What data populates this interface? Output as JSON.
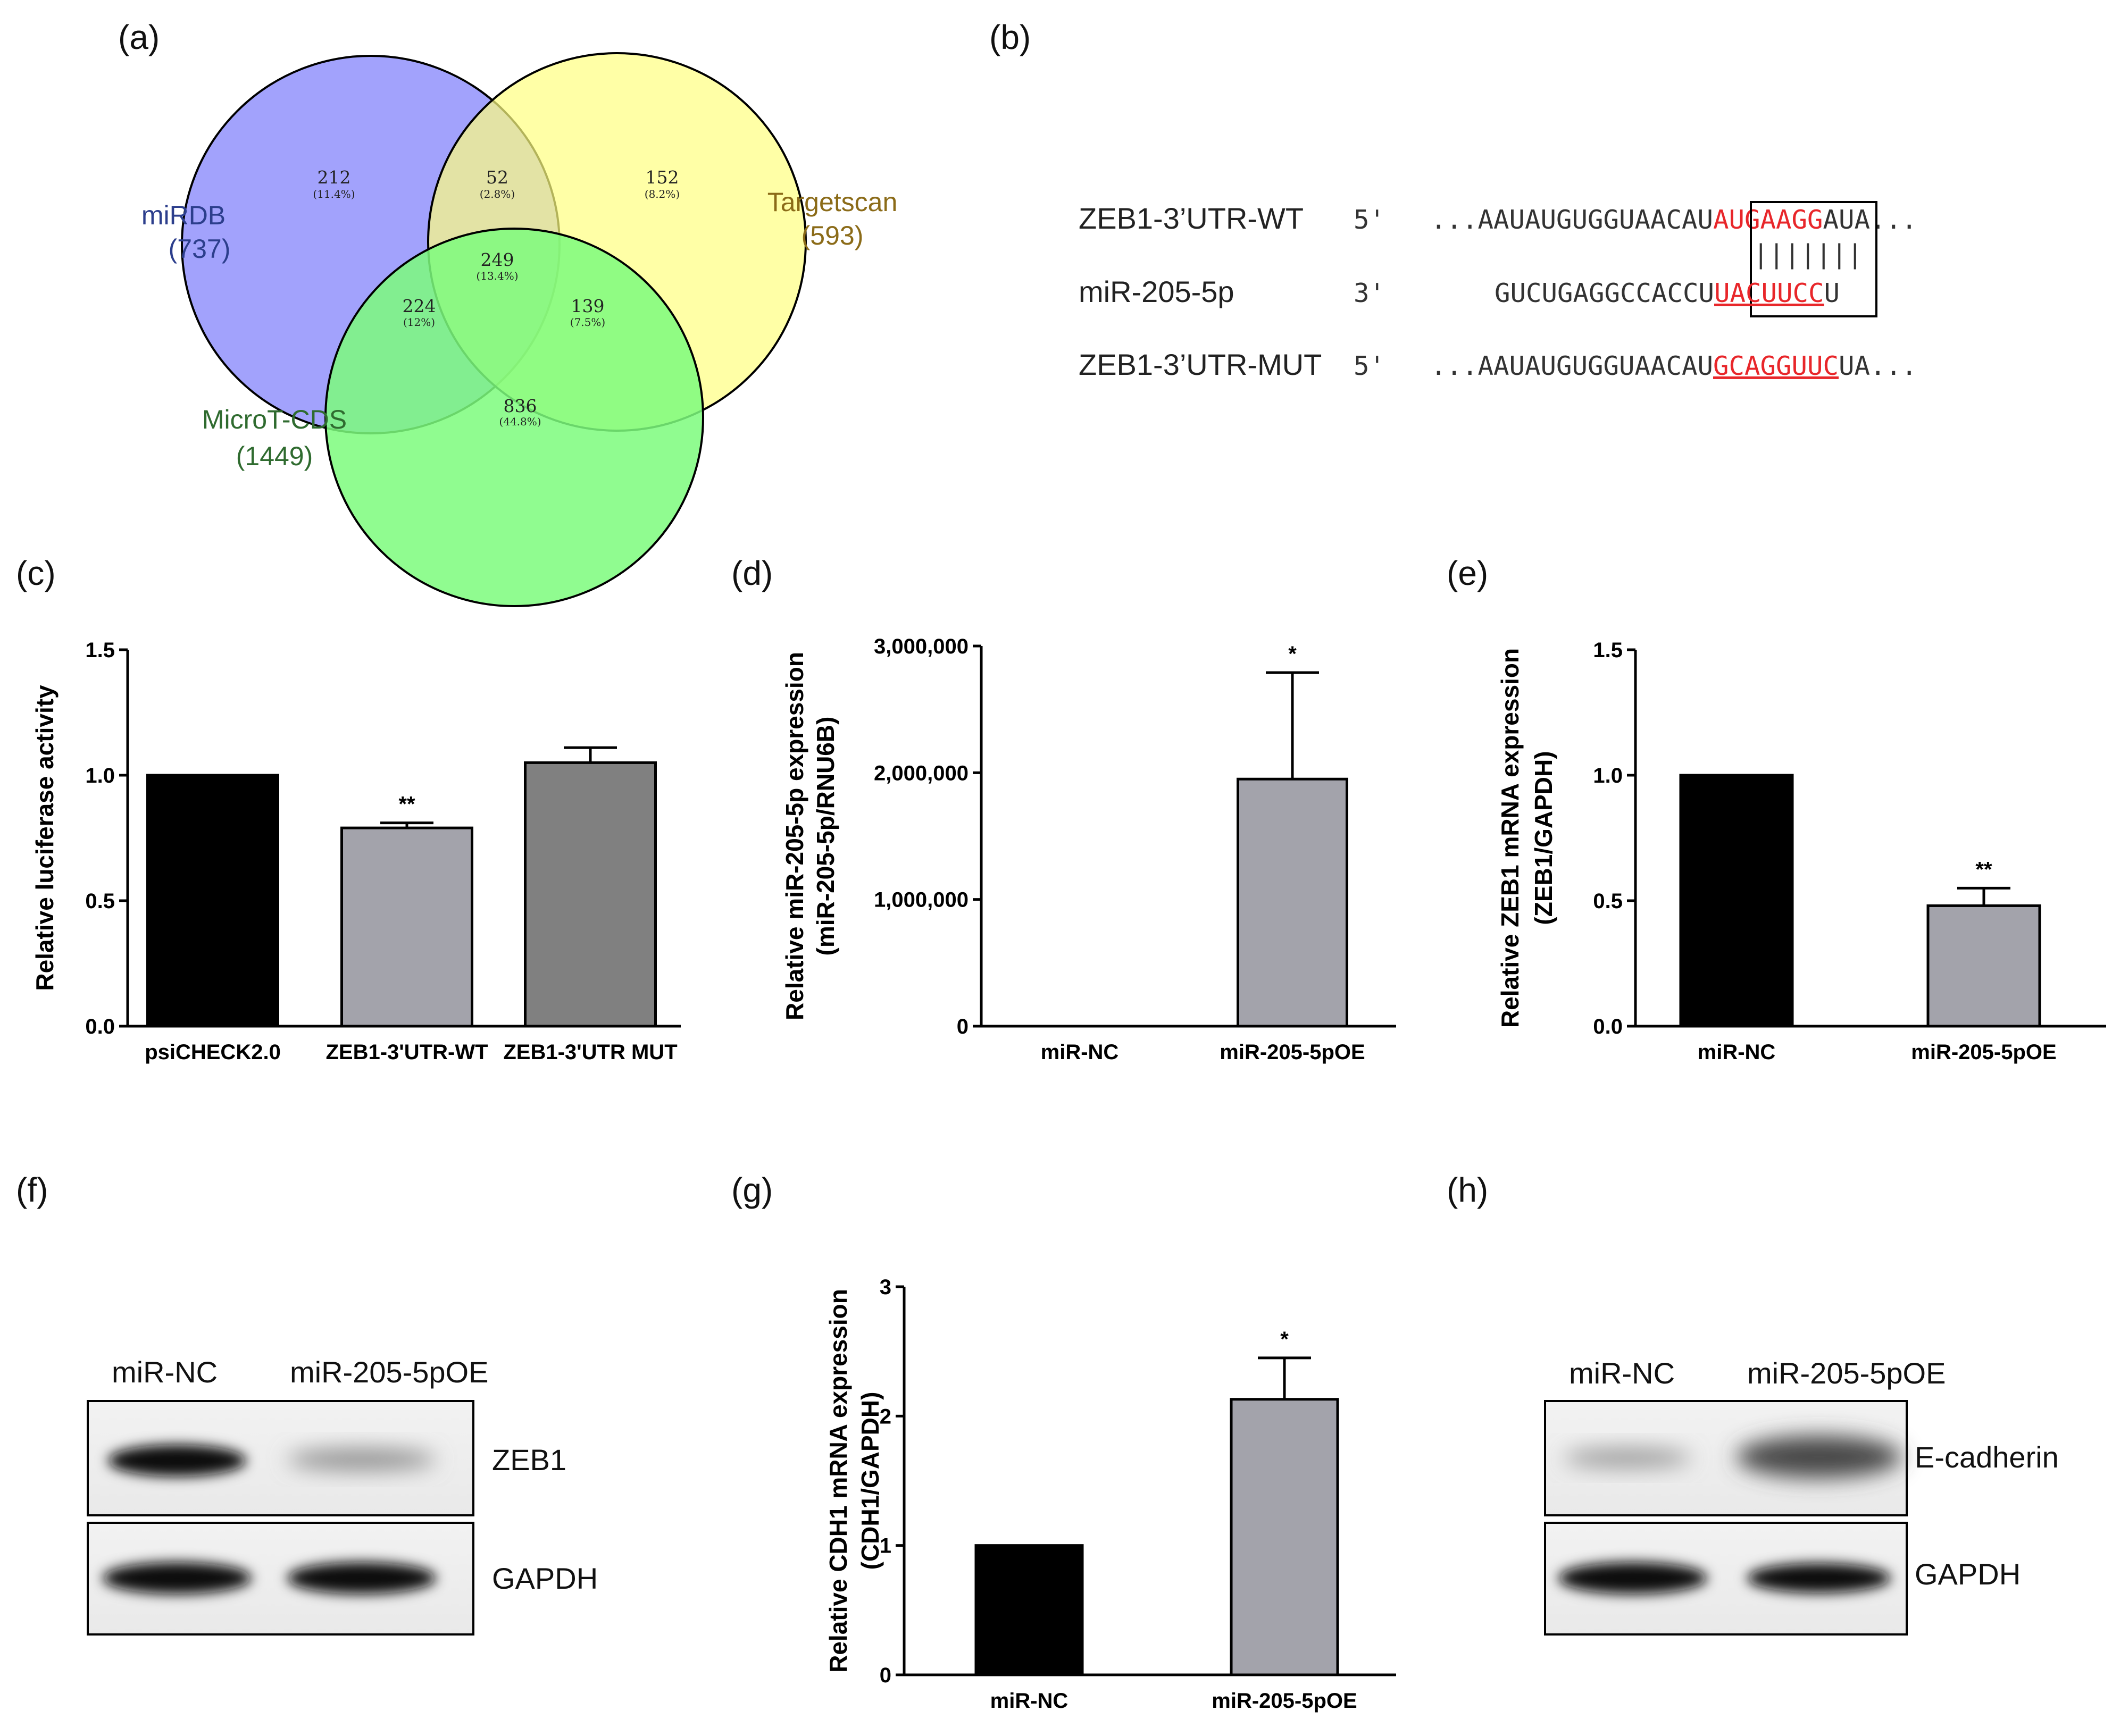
{
  "panels": {
    "a": "(a)",
    "b": "(b)",
    "c": "(c)",
    "d": "(d)",
    "e": "(e)",
    "f": "(f)",
    "g": "(g)",
    "h": "(h)"
  },
  "venn": {
    "sets": [
      {
        "name": "miRDB",
        "total": "(737)",
        "color": "#7b7bfb",
        "label_color": "#2c3e8c"
      },
      {
        "name": "Targetscan",
        "total": "(593)",
        "color": "#ffff80",
        "label_color": "#8b6b18"
      },
      {
        "name": "MicroT-CDS",
        "total": "(1449)",
        "color": "#7cfc7c",
        "label_color": "#2f6b2f"
      }
    ],
    "regions": {
      "mirdb_only": {
        "n": "212",
        "pct": "(11.4%)"
      },
      "mirdb_target": {
        "n": "52",
        "pct": "(2.8%)"
      },
      "target_only": {
        "n": "152",
        "pct": "(8.2%)"
      },
      "all_three": {
        "n": "249",
        "pct": "(13.4%)"
      },
      "mirdb_microt": {
        "n": "224",
        "pct": "(12%)"
      },
      "target_microt": {
        "n": "139",
        "pct": "(7.5%)"
      },
      "microt_only": {
        "n": "836",
        "pct": "(44.8%)"
      }
    }
  },
  "sequences": {
    "wt": {
      "name": "ZEB1-3’UTR-WT",
      "end": "5'",
      "pre": "...AAUAUGUGGUAACAU",
      "seed": "AUGAAGG",
      "post": "AUA..."
    },
    "pairing": "|||||||",
    "mir": {
      "name": "miR-205-5p",
      "end": "3'",
      "pre": "GUCUGAGGCCACCU",
      "seed": "UACUUCC",
      "post": "U"
    },
    "mut": {
      "name": "ZEB1-3’UTR-MUT",
      "end": "5'",
      "pre": "...AAUAUGUGGUAACAU",
      "seed": "GCAGGUUC",
      "post": "UA..."
    },
    "seed_color": "#e8262a"
  },
  "chart_data": [
    {
      "panel": "c",
      "type": "bar",
      "categories": [
        "psiCHECK2.0",
        "ZEB1-3'UTR-WT",
        "ZEB1-3'UTR MUT"
      ],
      "values": [
        1.0,
        0.79,
        1.05
      ],
      "errors": [
        0,
        0.02,
        0.06
      ],
      "significance": [
        "",
        "**",
        ""
      ],
      "colors": [
        "#000000",
        "#a3a3ab",
        "#808080"
      ],
      "ylabel": "Relative luciferase activity",
      "ylabel2": "",
      "ylim": [
        0,
        1.5
      ],
      "yticks": [
        "0.0",
        "0.5",
        "1.0",
        "1.5"
      ]
    },
    {
      "panel": "d",
      "type": "bar",
      "categories": [
        "miR-NC",
        "miR-205-5pOE"
      ],
      "values": [
        0,
        1950000
      ],
      "errors": [
        0,
        840000
      ],
      "significance": [
        "",
        "*"
      ],
      "colors": [
        "#000000",
        "#a3a3ab"
      ],
      "ylabel": "Relative miR-205-5p expression",
      "ylabel2": "(miR-205-5p/RNU6B)",
      "ylim": [
        0,
        3000000
      ],
      "yticks": [
        "0",
        "1,000,000",
        "2,000,000",
        "3,000,000"
      ]
    },
    {
      "panel": "e",
      "type": "bar",
      "categories": [
        "miR-NC",
        "miR-205-5pOE"
      ],
      "values": [
        1.0,
        0.48
      ],
      "errors": [
        0,
        0.07
      ],
      "significance": [
        "",
        "**"
      ],
      "colors": [
        "#000000",
        "#a3a3ab"
      ],
      "ylabel": "Relative ZEB1 mRNA expression",
      "ylabel2": "(ZEB1/GAPDH)",
      "ylim": [
        0,
        1.5
      ],
      "yticks": [
        "0.0",
        "0.5",
        "1.0",
        "1.5"
      ]
    },
    {
      "panel": "g",
      "type": "bar",
      "categories": [
        "miR-NC",
        "miR-205-5pOE"
      ],
      "values": [
        1.0,
        2.13
      ],
      "errors": [
        0,
        0.32
      ],
      "significance": [
        "",
        "*"
      ],
      "colors": [
        "#000000",
        "#a3a3ab"
      ],
      "ylabel": "Relative CDH1 mRNA expression",
      "ylabel2": "(CDH1/GAPDH)",
      "ylim": [
        0,
        3
      ],
      "yticks": [
        "0",
        "1",
        "2",
        "3"
      ]
    }
  ],
  "blots": {
    "f": {
      "lanes": [
        "miR-NC",
        "miR-205-5pOE"
      ],
      "rows": [
        "ZEB1",
        "GAPDH"
      ]
    },
    "h": {
      "lanes": [
        "miR-NC",
        "miR-205-5pOE"
      ],
      "rows": [
        "E-cadherin",
        "GAPDH"
      ]
    }
  }
}
